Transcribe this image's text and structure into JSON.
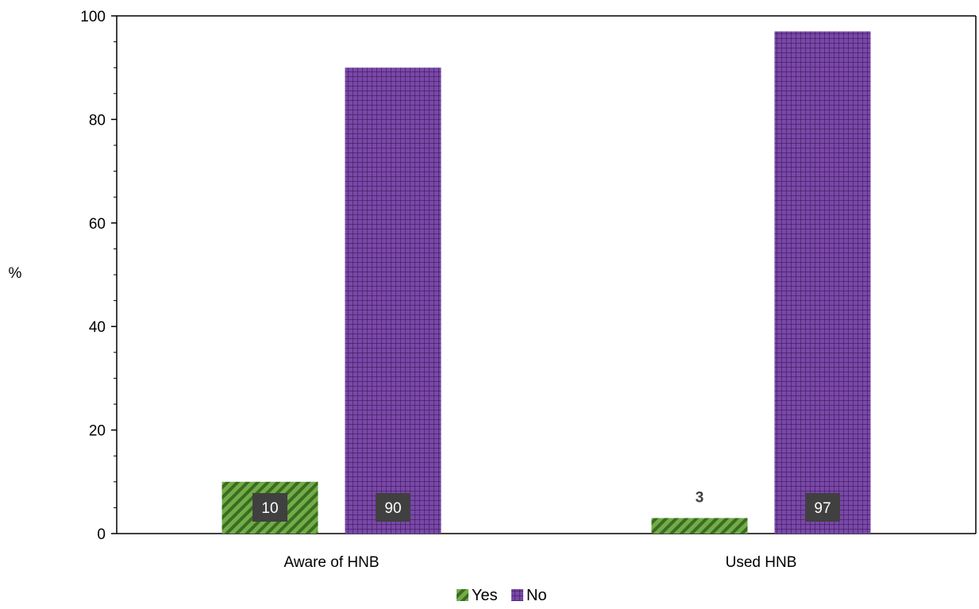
{
  "chart_data": {
    "type": "bar",
    "categories": [
      "Aware of HNB",
      "Used HNB"
    ],
    "series": [
      {
        "name": "Yes",
        "values": [
          10,
          3
        ],
        "color": "#70ad47"
      },
      {
        "name": "No",
        "values": [
          90,
          97
        ],
        "color": "#7030a0"
      }
    ],
    "data_labels": [
      [
        "10",
        "3"
      ],
      [
        "90",
        "97"
      ]
    ],
    "ylabel": "%",
    "xlabel": "",
    "ylim": [
      0,
      100
    ],
    "yticks": [
      0,
      20,
      40,
      60,
      80,
      100
    ],
    "grid": false,
    "legend_position": "bottom"
  }
}
